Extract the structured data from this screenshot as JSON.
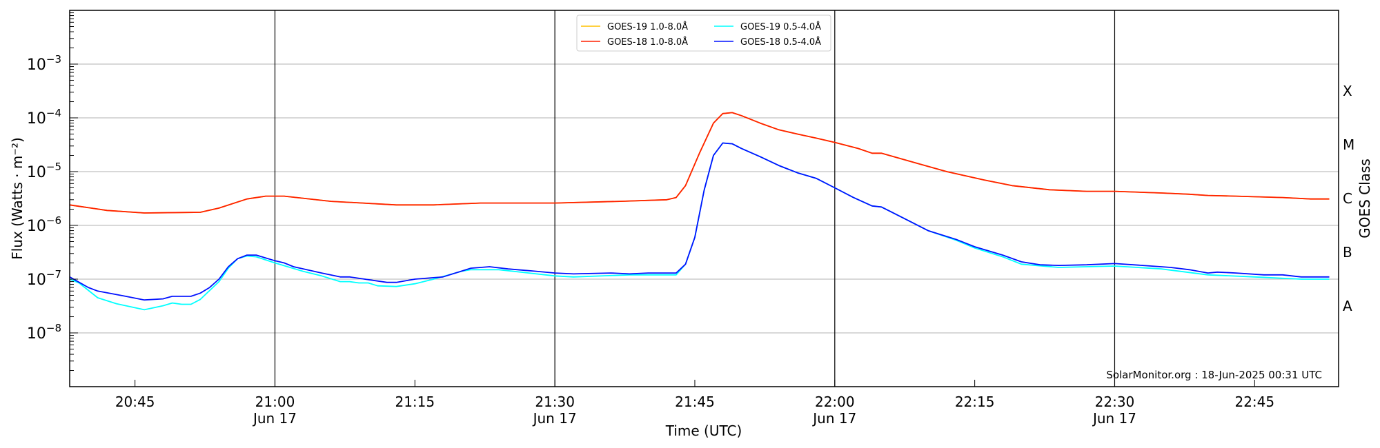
{
  "chart_data": {
    "type": "line",
    "title": "",
    "xlabel": "Time (UTC)",
    "ylabel": "Flux (Watts · m⁻²)",
    "ylabel_right": "GOES Class",
    "yscale": "log",
    "ylim": [
      1e-09,
      0.01
    ],
    "xlim": [
      "20:38",
      "22:54"
    ],
    "grid": "horizontal at decades",
    "legend_position": "top-center",
    "yticks": [
      {
        "value": 1e-08,
        "base": "10",
        "exp": "−8"
      },
      {
        "value": 1e-07,
        "base": "10",
        "exp": "−7"
      },
      {
        "value": 1e-06,
        "base": "10",
        "exp": "−6"
      },
      {
        "value": 1e-05,
        "base": "10",
        "exp": "−5"
      },
      {
        "value": 0.0001,
        "base": "10",
        "exp": "−4"
      },
      {
        "value": 0.001,
        "base": "10",
        "exp": "−3"
      }
    ],
    "xticks": [
      {
        "time": "20:45",
        "label": "20:45",
        "sublabel": ""
      },
      {
        "time": "21:00",
        "label": "21:00",
        "sublabel": "Jun 17"
      },
      {
        "time": "21:15",
        "label": "21:15",
        "sublabel": ""
      },
      {
        "time": "21:30",
        "label": "21:30",
        "sublabel": "Jun 17"
      },
      {
        "time": "21:45",
        "label": "21:45",
        "sublabel": ""
      },
      {
        "time": "22:00",
        "label": "22:00",
        "sublabel": "Jun 17"
      },
      {
        "time": "22:15",
        "label": "22:15",
        "sublabel": ""
      },
      {
        "time": "22:30",
        "label": "22:30",
        "sublabel": "Jun 17"
      },
      {
        "time": "22:45",
        "label": "22:45",
        "sublabel": ""
      }
    ],
    "vertical_lines": [
      "21:00",
      "21:30",
      "22:00",
      "22:30"
    ],
    "classes": [
      {
        "label": "X",
        "value": 0.000316
      },
      {
        "label": "M",
        "value": 3.16e-05
      },
      {
        "label": "C",
        "value": 3.16e-06
      },
      {
        "label": "B",
        "value": 3.16e-07
      },
      {
        "label": "A",
        "value": 3.16e-08
      }
    ],
    "annotation": "SolarMonitor.org : 18-Jun-2025 00:31 UTC",
    "series": [
      {
        "name": "GOES-19 1.0-8.0Å",
        "color": "#ffc000",
        "points": [
          [
            "20:38",
            2.4e-06
          ],
          [
            "20:42",
            1.9e-06
          ],
          [
            "20:46",
            1.7e-06
          ],
          [
            "20:52",
            1.75e-06
          ],
          [
            "20:54",
            2.1e-06
          ],
          [
            "20:57",
            3.1e-06
          ],
          [
            "20:59",
            3.5e-06
          ],
          [
            "21:01",
            3.5e-06
          ],
          [
            "21:06",
            2.8e-06
          ],
          [
            "21:13",
            2.4e-06
          ],
          [
            "21:17",
            2.4e-06
          ],
          [
            "21:22",
            2.6e-06
          ],
          [
            "21:30",
            2.6e-06
          ],
          [
            "21:37",
            2.8e-06
          ],
          [
            "21:42",
            3e-06
          ],
          [
            "21:43",
            3.3e-06
          ],
          [
            "21:44",
            5.5e-06
          ],
          [
            "21:45.5",
            2.2e-05
          ],
          [
            "21:47",
            8e-05
          ],
          [
            "21:48",
            0.00012
          ],
          [
            "21:49",
            0.000125
          ],
          [
            "21:50",
            0.00011
          ],
          [
            "21:52",
            8e-05
          ],
          [
            "21:54",
            6e-05
          ],
          [
            "21:56",
            5e-05
          ],
          [
            "21:58",
            4.2e-05
          ],
          [
            "22:00",
            3.5e-05
          ],
          [
            "22:02.5",
            2.7e-05
          ],
          [
            "22:04",
            2.2e-05
          ],
          [
            "22:05",
            2.2e-05
          ],
          [
            "22:09",
            1.4e-05
          ],
          [
            "22:12",
            1e-05
          ],
          [
            "22:16",
            7e-06
          ],
          [
            "22:19",
            5.5e-06
          ],
          [
            "22:23",
            4.6e-06
          ],
          [
            "22:27",
            4.3e-06
          ],
          [
            "22:30",
            4.3e-06
          ],
          [
            "22:35",
            4e-06
          ],
          [
            "22:38",
            3.8e-06
          ],
          [
            "22:40",
            3.6e-06
          ],
          [
            "22:43",
            3.5e-06
          ],
          [
            "22:48",
            3.3e-06
          ],
          [
            "22:51",
            3.1e-06
          ],
          [
            "22:53",
            3.1e-06
          ]
        ]
      },
      {
        "name": "GOES-18 1.0-8.0Å",
        "color": "#ff2000",
        "points": [
          [
            "20:38",
            2.4e-06
          ],
          [
            "20:42",
            1.9e-06
          ],
          [
            "20:46",
            1.7e-06
          ],
          [
            "20:52",
            1.75e-06
          ],
          [
            "20:54",
            2.1e-06
          ],
          [
            "20:57",
            3.1e-06
          ],
          [
            "20:59",
            3.5e-06
          ],
          [
            "21:01",
            3.5e-06
          ],
          [
            "21:06",
            2.8e-06
          ],
          [
            "21:13",
            2.4e-06
          ],
          [
            "21:17",
            2.4e-06
          ],
          [
            "21:22",
            2.6e-06
          ],
          [
            "21:30",
            2.6e-06
          ],
          [
            "21:37",
            2.8e-06
          ],
          [
            "21:42",
            3e-06
          ],
          [
            "21:43",
            3.3e-06
          ],
          [
            "21:44",
            5.5e-06
          ],
          [
            "21:45.5",
            2.2e-05
          ],
          [
            "21:47",
            8e-05
          ],
          [
            "21:48",
            0.00012
          ],
          [
            "21:49",
            0.000125
          ],
          [
            "21:50",
            0.00011
          ],
          [
            "21:52",
            8e-05
          ],
          [
            "21:54",
            6e-05
          ],
          [
            "21:56",
            5e-05
          ],
          [
            "21:58",
            4.2e-05
          ],
          [
            "22:00",
            3.5e-05
          ],
          [
            "22:02.5",
            2.7e-05
          ],
          [
            "22:04",
            2.2e-05
          ],
          [
            "22:05",
            2.2e-05
          ],
          [
            "22:09",
            1.4e-05
          ],
          [
            "22:12",
            1e-05
          ],
          [
            "22:16",
            7e-06
          ],
          [
            "22:19",
            5.5e-06
          ],
          [
            "22:23",
            4.6e-06
          ],
          [
            "22:27",
            4.3e-06
          ],
          [
            "22:30",
            4.3e-06
          ],
          [
            "22:35",
            4e-06
          ],
          [
            "22:38",
            3.8e-06
          ],
          [
            "22:40",
            3.6e-06
          ],
          [
            "22:43",
            3.5e-06
          ],
          [
            "22:48",
            3.3e-06
          ],
          [
            "22:51",
            3.1e-06
          ],
          [
            "22:53",
            3.1e-06
          ]
        ]
      },
      {
        "name": "GOES-19 0.5-4.0Å",
        "color": "#00ffff",
        "points": [
          [
            "20:38",
            1e-07
          ],
          [
            "20:39",
            8.5e-08
          ],
          [
            "20:41",
            4.5e-08
          ],
          [
            "20:43",
            3.5e-08
          ],
          [
            "20:46",
            2.7e-08
          ],
          [
            "20:48",
            3.2e-08
          ],
          [
            "20:49",
            3.6e-08
          ],
          [
            "20:50",
            3.4e-08
          ],
          [
            "20:51",
            3.4e-08
          ],
          [
            "20:52",
            4.2e-08
          ],
          [
            "20:54",
            9e-08
          ],
          [
            "20:55",
            1.6e-07
          ],
          [
            "20:56",
            2.4e-07
          ],
          [
            "20:57",
            2.7e-07
          ],
          [
            "20:58",
            2.6e-07
          ],
          [
            "21:00",
            2e-07
          ],
          [
            "21:03",
            1.4e-07
          ],
          [
            "21:05",
            1.15e-07
          ],
          [
            "21:07",
            9e-08
          ],
          [
            "21:08",
            9e-08
          ],
          [
            "21:09",
            8.5e-08
          ],
          [
            "21:10",
            8.5e-08
          ],
          [
            "21:11",
            7.5e-08
          ],
          [
            "21:13",
            7.3e-08
          ],
          [
            "21:15",
            8.2e-08
          ],
          [
            "21:17",
            1e-07
          ],
          [
            "21:20",
            1.4e-07
          ],
          [
            "21:21",
            1.5e-07
          ],
          [
            "21:24",
            1.5e-07
          ],
          [
            "21:30",
            1.15e-07
          ],
          [
            "21:32",
            1.1e-07
          ],
          [
            "21:38",
            1.2e-07
          ],
          [
            "21:43",
            1.2e-07
          ],
          [
            "21:44",
            1.9e-07
          ],
          [
            "21:45",
            6e-07
          ],
          [
            "21:46",
            4.5e-06
          ],
          [
            "21:47",
            2e-05
          ],
          [
            "21:48",
            3.4e-05
          ],
          [
            "21:49",
            3.3e-05
          ],
          [
            "21:50",
            2.7e-05
          ],
          [
            "21:52",
            1.9e-05
          ],
          [
            "21:54",
            1.3e-05
          ],
          [
            "21:56",
            9.5e-06
          ],
          [
            "21:58",
            7.5e-06
          ],
          [
            "22:00",
            5e-06
          ],
          [
            "22:02",
            3.3e-06
          ],
          [
            "22:04",
            2.3e-06
          ],
          [
            "22:05",
            2.2e-06
          ],
          [
            "22:06",
            1.8e-06
          ],
          [
            "22:08",
            1.2e-06
          ],
          [
            "22:10",
            8e-07
          ],
          [
            "22:13",
            5.3e-07
          ],
          [
            "22:15",
            3.8e-07
          ],
          [
            "22:18",
            2.6e-07
          ],
          [
            "22:20",
            1.9e-07
          ],
          [
            "22:24",
            1.65e-07
          ],
          [
            "22:30",
            1.75e-07
          ],
          [
            "22:35",
            1.55e-07
          ],
          [
            "22:40",
            1.2e-07
          ],
          [
            "22:45",
            1.1e-07
          ],
          [
            "22:50",
            1e-07
          ],
          [
            "22:53",
            1e-07
          ]
        ]
      },
      {
        "name": "GOES-18 0.5-4.0Å",
        "color": "#0010ff",
        "points": [
          [
            "20:38",
            1.1e-07
          ],
          [
            "20:40",
            7e-08
          ],
          [
            "20:41",
            6e-08
          ],
          [
            "20:44",
            4.8e-08
          ],
          [
            "20:46",
            4.1e-08
          ],
          [
            "20:48",
            4.3e-08
          ],
          [
            "20:49",
            4.8e-08
          ],
          [
            "20:51",
            4.8e-08
          ],
          [
            "20:52",
            5.5e-08
          ],
          [
            "20:53",
            7e-08
          ],
          [
            "20:54",
            1e-07
          ],
          [
            "20:55",
            1.7e-07
          ],
          [
            "20:56",
            2.4e-07
          ],
          [
            "20:57",
            2.8e-07
          ],
          [
            "20:58",
            2.8e-07
          ],
          [
            "21:00",
            2.2e-07
          ],
          [
            "21:01",
            2e-07
          ],
          [
            "21:02",
            1.7e-07
          ],
          [
            "21:05",
            1.3e-07
          ],
          [
            "21:07",
            1.1e-07
          ],
          [
            "21:08",
            1.1e-07
          ],
          [
            "21:12",
            8.7e-08
          ],
          [
            "21:13",
            8.7e-08
          ],
          [
            "21:15",
            1e-07
          ],
          [
            "21:18",
            1.1e-07
          ],
          [
            "21:21",
            1.6e-07
          ],
          [
            "21:23",
            1.7e-07
          ],
          [
            "21:25",
            1.55e-07
          ],
          [
            "21:28",
            1.4e-07
          ],
          [
            "21:30",
            1.3e-07
          ],
          [
            "21:32",
            1.25e-07
          ],
          [
            "21:36",
            1.3e-07
          ],
          [
            "21:38",
            1.25e-07
          ],
          [
            "21:40",
            1.3e-07
          ],
          [
            "21:43",
            1.3e-07
          ],
          [
            "21:44",
            1.9e-07
          ],
          [
            "21:45",
            6e-07
          ],
          [
            "21:46",
            4.5e-06
          ],
          [
            "21:47",
            2e-05
          ],
          [
            "21:48",
            3.4e-05
          ],
          [
            "21:49",
            3.3e-05
          ],
          [
            "21:50",
            2.7e-05
          ],
          [
            "21:52",
            1.9e-05
          ],
          [
            "21:54",
            1.3e-05
          ],
          [
            "21:56",
            9.5e-06
          ],
          [
            "21:58",
            7.5e-06
          ],
          [
            "22:00",
            5e-06
          ],
          [
            "22:02",
            3.3e-06
          ],
          [
            "22:04",
            2.3e-06
          ],
          [
            "22:05",
            2.2e-06
          ],
          [
            "22:06",
            1.8e-06
          ],
          [
            "22:08",
            1.2e-06
          ],
          [
            "22:10",
            8e-07
          ],
          [
            "22:13",
            5.5e-07
          ],
          [
            "22:15",
            4e-07
          ],
          [
            "22:18",
            2.8e-07
          ],
          [
            "22:20",
            2.1e-07
          ],
          [
            "22:22",
            1.85e-07
          ],
          [
            "22:24",
            1.8e-07
          ],
          [
            "22:27",
            1.85e-07
          ],
          [
            "22:30",
            1.95e-07
          ],
          [
            "22:33",
            1.8e-07
          ],
          [
            "22:36",
            1.65e-07
          ],
          [
            "22:38",
            1.5e-07
          ],
          [
            "22:40",
            1.3e-07
          ],
          [
            "22:41",
            1.35e-07
          ],
          [
            "22:43",
            1.3e-07
          ],
          [
            "22:46",
            1.2e-07
          ],
          [
            "22:48",
            1.2e-07
          ],
          [
            "22:50",
            1.1e-07
          ],
          [
            "22:53",
            1.1e-07
          ]
        ]
      }
    ]
  }
}
